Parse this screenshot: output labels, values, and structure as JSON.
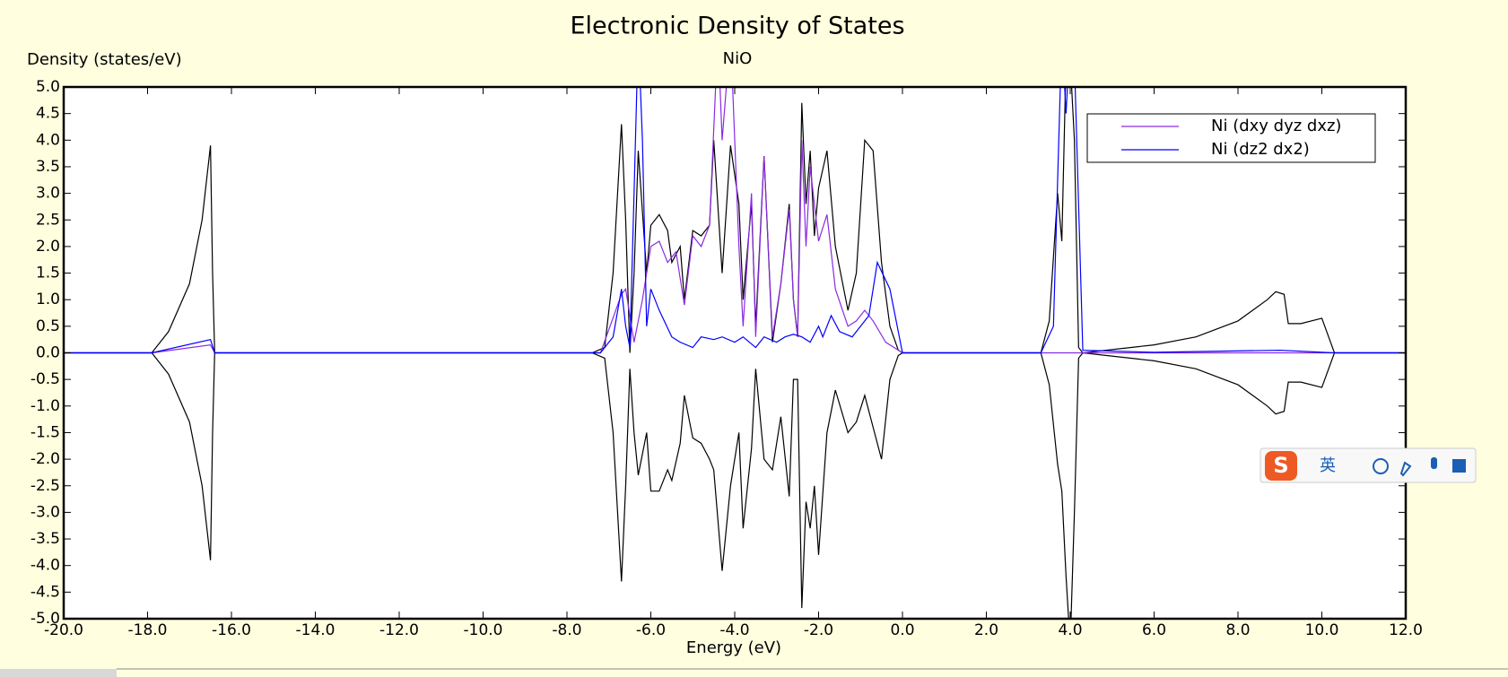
{
  "chart_data": {
    "type": "line",
    "title": "Electronic Density of States",
    "subtitle": "NiO",
    "y_label": "Density (states/eV)",
    "x_label": "Energy (eV)",
    "xlim": [
      -20,
      12
    ],
    "ylim": [
      -5,
      5
    ],
    "xticks": [
      {
        "value": -20,
        "label": "-20.0"
      },
      {
        "value": -18,
        "label": "-18.0"
      },
      {
        "value": -16,
        "label": "-16.0"
      },
      {
        "value": -14,
        "label": "-14.0"
      },
      {
        "value": -12,
        "label": "-12.0"
      },
      {
        "value": -10,
        "label": "-10.0"
      },
      {
        "value": -8,
        "label": "-8.0"
      },
      {
        "value": -6,
        "label": "-6.0"
      },
      {
        "value": -4,
        "label": "-4.0"
      },
      {
        "value": -2,
        "label": "-2.0"
      },
      {
        "value": 0,
        "label": "0.0"
      },
      {
        "value": 2,
        "label": "2.0"
      },
      {
        "value": 4,
        "label": "4.0"
      },
      {
        "value": 6,
        "label": "6.0"
      },
      {
        "value": 8,
        "label": "8.0"
      },
      {
        "value": 10,
        "label": "10.0"
      },
      {
        "value": 12,
        "label": "12.0"
      }
    ],
    "yticks": [
      {
        "value": 5,
        "label": "5.0"
      },
      {
        "value": 4.5,
        "label": "4.5"
      },
      {
        "value": 4,
        "label": "4.0"
      },
      {
        "value": 3.5,
        "label": "3.5"
      },
      {
        "value": 3,
        "label": "3.0"
      },
      {
        "value": 2.5,
        "label": "2.5"
      },
      {
        "value": 2,
        "label": "2.0"
      },
      {
        "value": 1.5,
        "label": "1.5"
      },
      {
        "value": 1,
        "label": "1.0"
      },
      {
        "value": 0.5,
        "label": "0.5"
      },
      {
        "value": 0,
        "label": "0.0"
      },
      {
        "value": -0.5,
        "label": "-0.5"
      },
      {
        "value": -1,
        "label": "-1.0"
      },
      {
        "value": -1.5,
        "label": "-1.5"
      },
      {
        "value": -2,
        "label": "-2.0"
      },
      {
        "value": -2.5,
        "label": "-2.5"
      },
      {
        "value": -3,
        "label": "-3.0"
      },
      {
        "value": -3.5,
        "label": "-3.5"
      },
      {
        "value": -4,
        "label": "-4.0"
      },
      {
        "value": -4.5,
        "label": "-4.5"
      },
      {
        "value": -5,
        "label": "-5.0"
      }
    ],
    "legend": "upper right",
    "series": [
      {
        "color": "#000000",
        "x": [
          -20,
          -17.9,
          -17.5,
          -17,
          -16.7,
          -16.5,
          -16.45,
          -16.4,
          -7.4,
          -7.1,
          -6.9,
          -6.7,
          -6.6,
          -6.5,
          -6.4,
          -6.3,
          -6.1,
          -6,
          -5.8,
          -5.6,
          -5.5,
          -5.3,
          -5.2,
          -5,
          -4.8,
          -4.6,
          -4.5,
          -4.3,
          -4.1,
          -3.9,
          -3.8,
          -3.6,
          -3.5,
          -3.3,
          -3.1,
          -2.9,
          -2.7,
          -2.6,
          -2.5,
          -2.4,
          -2.3,
          -2.2,
          -2.1,
          -2,
          -1.8,
          -1.6,
          -1.3,
          -1.1,
          -0.9,
          -0.7,
          -0.5,
          -0.3,
          -0.1,
          0,
          3.3,
          3.5,
          3.7,
          3.8,
          3.9,
          4,
          4.1,
          4.2,
          4.3,
          6,
          7,
          8,
          8.7,
          8.9,
          9.1,
          9.2,
          9.5,
          10,
          10.3,
          12
        ],
        "values": [
          0,
          0,
          0.4,
          1.3,
          2.5,
          3.9,
          1.5,
          0,
          0,
          0.1,
          1.5,
          4.3,
          2.5,
          0,
          1.5,
          3.8,
          1.5,
          2.4,
          2.6,
          2.3,
          1.7,
          2.0,
          1.0,
          2.3,
          2.2,
          2.4,
          4.0,
          1.5,
          3.9,
          2.8,
          1.0,
          2.8,
          0.5,
          3.7,
          0.2,
          1.3,
          2.8,
          1.0,
          0.3,
          4.7,
          2.8,
          3.8,
          2.2,
          3.1,
          3.8,
          2.0,
          0.8,
          1.5,
          4.0,
          3.8,
          1.7,
          0.5,
          0.05,
          0,
          0,
          0.6,
          3.0,
          2.1,
          5.5,
          5.5,
          4.0,
          0.1,
          0,
          0.15,
          0.3,
          0.6,
          1.0,
          1.15,
          1.1,
          0.55,
          0.55,
          0.65,
          0,
          0
        ]
      },
      {
        "color": "#000000",
        "x": [
          -20,
          -17.9,
          -17.5,
          -17,
          -16.7,
          -16.5,
          -16.45,
          -16.4,
          -7.4,
          -7.1,
          -6.9,
          -6.7,
          -6.6,
          -6.5,
          -6.4,
          -6.3,
          -6.1,
          -6,
          -5.8,
          -5.6,
          -5.5,
          -5.3,
          -5.2,
          -5,
          -4.8,
          -4.6,
          -4.5,
          -4.3,
          -4.1,
          -3.9,
          -3.8,
          -3.6,
          -3.5,
          -3.3,
          -3.1,
          -2.9,
          -2.7,
          -2.6,
          -2.5,
          -2.4,
          -2.3,
          -2.2,
          -2.1,
          -2,
          -1.8,
          -1.6,
          -1.3,
          -1.1,
          -0.9,
          -0.7,
          -0.5,
          -0.3,
          -0.1,
          0,
          3.3,
          3.5,
          3.7,
          3.8,
          3.9,
          4,
          4.1,
          4.2,
          4.3,
          6,
          7,
          8,
          8.7,
          8.9,
          9.1,
          9.2,
          9.5,
          10,
          10.3,
          12
        ],
        "values": [
          0,
          0,
          -0.4,
          -1.3,
          -2.5,
          -3.9,
          -1.5,
          0,
          0,
          -0.1,
          -1.5,
          -4.3,
          -2.5,
          -0.3,
          -1.5,
          -2.3,
          -1.5,
          -2.6,
          -2.6,
          -2.2,
          -2.4,
          -1.7,
          -0.8,
          -1.6,
          -1.7,
          -2.0,
          -2.2,
          -4.1,
          -2.5,
          -1.5,
          -3.3,
          -1.8,
          -0.3,
          -2.0,
          -2.2,
          -1.2,
          -2.7,
          -0.5,
          -0.5,
          -4.8,
          -2.8,
          -3.3,
          -2.5,
          -3.8,
          -1.5,
          -0.7,
          -1.5,
          -1.3,
          -0.8,
          -1.4,
          -2.0,
          -0.5,
          -0.05,
          0,
          0,
          -0.6,
          -2.1,
          -2.6,
          -4.2,
          -5.5,
          -3.0,
          -0.1,
          0,
          -0.15,
          -0.3,
          -0.6,
          -1.0,
          -1.15,
          -1.1,
          -0.55,
          -0.55,
          -0.65,
          0,
          0
        ]
      },
      {
        "name": "Ni (dxy dyz dxz)",
        "color": "#8a2be2",
        "x": [
          -20,
          -17.9,
          -16.5,
          -16.4,
          -7.2,
          -6.7,
          -6.6,
          -6.4,
          -6.2,
          -6.0,
          -5.8,
          -5.6,
          -5.4,
          -5.2,
          -5.0,
          -4.8,
          -4.6,
          -4.4,
          -4.3,
          -4.1,
          -3.9,
          -3.8,
          -3.6,
          -3.5,
          -3.3,
          -3.1,
          -2.9,
          -2.7,
          -2.6,
          -2.5,
          -2.4,
          -2.3,
          -2.2,
          -2.0,
          -1.8,
          -1.6,
          -1.3,
          -1.1,
          -0.9,
          -0.7,
          -0.4,
          -0.1,
          0,
          12
        ],
        "values": [
          0,
          0,
          0.15,
          0,
          0,
          1.1,
          1.2,
          0.2,
          1.0,
          2.0,
          2.1,
          1.7,
          1.9,
          0.9,
          2.2,
          2.0,
          2.4,
          6,
          4.0,
          6,
          2.0,
          0.5,
          3.0,
          0.3,
          3.7,
          0.3,
          1.3,
          2.7,
          1.0,
          0.3,
          4.0,
          2.0,
          3.5,
          2.1,
          2.6,
          1.2,
          0.5,
          0.6,
          0.8,
          0.6,
          0.2,
          0.05,
          0,
          0
        ]
      },
      {
        "name": "Ni (dz2 dx2)",
        "color": "#0000ff",
        "x": [
          -20,
          -17.9,
          -16.5,
          -16.4,
          -7.2,
          -6.9,
          -6.7,
          -6.6,
          -6.5,
          -6.4,
          -6.3,
          -6.2,
          -6.1,
          -6,
          -5.8,
          -5.5,
          -5.3,
          -5,
          -4.8,
          -4.5,
          -4.3,
          -4.0,
          -3.8,
          -3.5,
          -3.3,
          -3.0,
          -2.8,
          -2.6,
          -2.4,
          -2.2,
          -2.0,
          -1.9,
          -1.7,
          -1.5,
          -1.2,
          -1.0,
          -0.8,
          -0.6,
          -0.3,
          0,
          3.3,
          3.6,
          3.8,
          3.9,
          4.0,
          4.1,
          4.3,
          6,
          9,
          10.3,
          12
        ],
        "values": [
          0,
          0,
          0.25,
          0,
          0,
          0.3,
          1.2,
          0.5,
          0.1,
          3,
          6,
          4,
          0.5,
          1.2,
          0.8,
          0.3,
          0.2,
          0.1,
          0.3,
          0.25,
          0.3,
          0.2,
          0.3,
          0.1,
          0.3,
          0.2,
          0.3,
          0.35,
          0.3,
          0.2,
          0.5,
          0.3,
          0.7,
          0.4,
          0.3,
          0.5,
          0.7,
          1.7,
          1.2,
          0,
          0,
          0.5,
          6,
          4.5,
          6,
          5.5,
          0.05,
          0.01,
          0.05,
          0,
          0
        ]
      }
    ]
  },
  "ime_toolbar": {
    "language": "英"
  }
}
